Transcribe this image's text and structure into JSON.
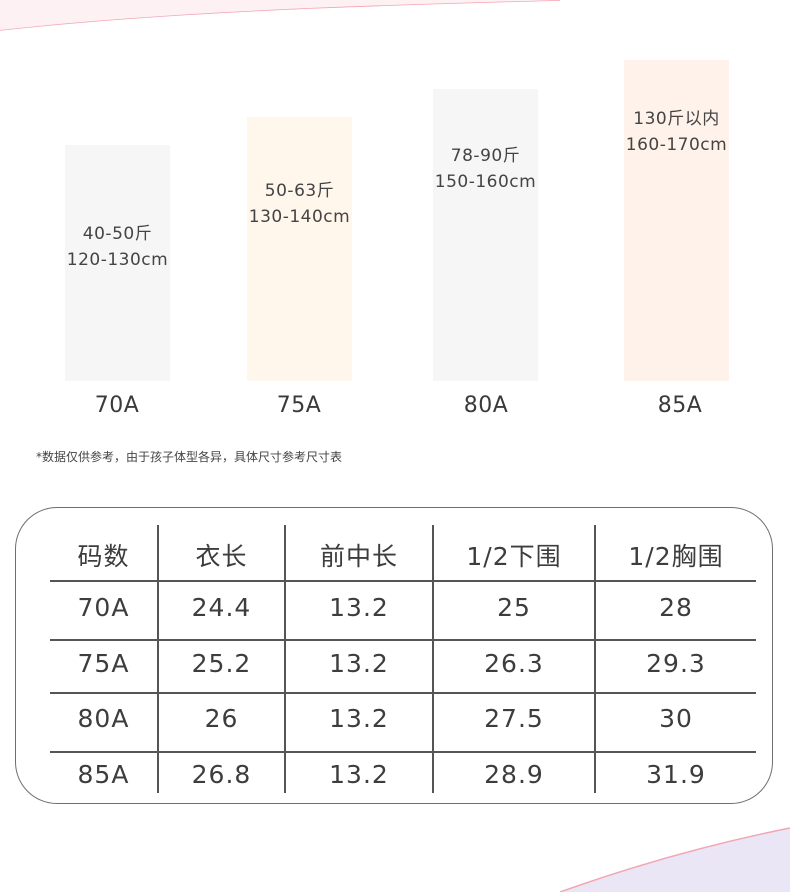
{
  "colors": {
    "bar_70A": "#f6f6f7",
    "bar_75A": "#fff6ec",
    "bar_80A": "#f6f6f7",
    "bar_85A": "#fff2ea",
    "accent_curve": "#f2a6b4",
    "corner_lavender": "#e9e4f4"
  },
  "size_bars": [
    {
      "weight": "40-50斤",
      "height_range": "120-130cm",
      "size": "70A"
    },
    {
      "weight": "50-63斤",
      "height_range": "130-140cm",
      "size": "75A"
    },
    {
      "weight": "78-90斤",
      "height_range": "150-160cm",
      "size": "80A"
    },
    {
      "weight": "130斤以内",
      "height_range": "160-170cm",
      "size": "85A"
    }
  ],
  "note": "*数据仅供参考，由于孩子体型各异，具体尺寸参考尺寸表",
  "table": {
    "headers": [
      "码数",
      "衣长",
      "前中长",
      "1/2下围",
      "1/2胸围"
    ],
    "rows": [
      [
        "70A",
        "24.4",
        "13.2",
        "25",
        "28"
      ],
      [
        "75A",
        "25.2",
        "13.2",
        "26.3",
        "29.3"
      ],
      [
        "80A",
        "26",
        "13.2",
        "27.5",
        "30"
      ],
      [
        "85A",
        "26.8",
        "13.2",
        "28.9",
        "31.9"
      ]
    ]
  }
}
